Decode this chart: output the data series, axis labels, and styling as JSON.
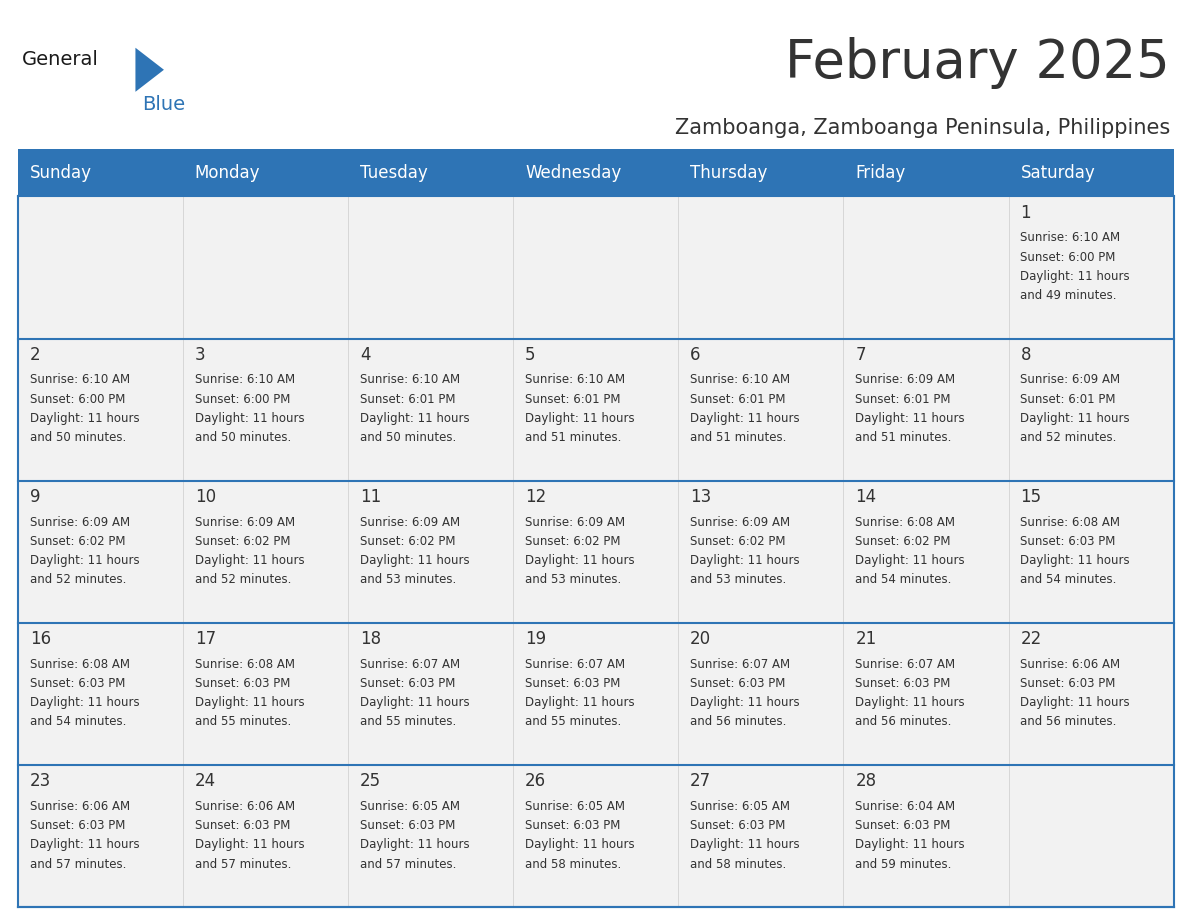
{
  "title": "February 2025",
  "subtitle": "Zamboanga, Zamboanga Peninsula, Philippines",
  "header_bg": "#2E74B5",
  "header_text_color": "#FFFFFF",
  "cell_bg": "#F2F2F2",
  "border_color": "#2E74B5",
  "cell_border_color": "#AAAAAA",
  "text_color": "#333333",
  "days_of_week": [
    "Sunday",
    "Monday",
    "Tuesday",
    "Wednesday",
    "Thursday",
    "Friday",
    "Saturday"
  ],
  "calendar_data": [
    [
      null,
      null,
      null,
      null,
      null,
      null,
      {
        "day": 1,
        "sunrise": "6:10 AM",
        "sunset": "6:00 PM",
        "daylight": "11 hours and 49 minutes."
      }
    ],
    [
      {
        "day": 2,
        "sunrise": "6:10 AM",
        "sunset": "6:00 PM",
        "daylight": "11 hours and 50 minutes."
      },
      {
        "day": 3,
        "sunrise": "6:10 AM",
        "sunset": "6:00 PM",
        "daylight": "11 hours and 50 minutes."
      },
      {
        "day": 4,
        "sunrise": "6:10 AM",
        "sunset": "6:01 PM",
        "daylight": "11 hours and 50 minutes."
      },
      {
        "day": 5,
        "sunrise": "6:10 AM",
        "sunset": "6:01 PM",
        "daylight": "11 hours and 51 minutes."
      },
      {
        "day": 6,
        "sunrise": "6:10 AM",
        "sunset": "6:01 PM",
        "daylight": "11 hours and 51 minutes."
      },
      {
        "day": 7,
        "sunrise": "6:09 AM",
        "sunset": "6:01 PM",
        "daylight": "11 hours and 51 minutes."
      },
      {
        "day": 8,
        "sunrise": "6:09 AM",
        "sunset": "6:01 PM",
        "daylight": "11 hours and 52 minutes."
      }
    ],
    [
      {
        "day": 9,
        "sunrise": "6:09 AM",
        "sunset": "6:02 PM",
        "daylight": "11 hours and 52 minutes."
      },
      {
        "day": 10,
        "sunrise": "6:09 AM",
        "sunset": "6:02 PM",
        "daylight": "11 hours and 52 minutes."
      },
      {
        "day": 11,
        "sunrise": "6:09 AM",
        "sunset": "6:02 PM",
        "daylight": "11 hours and 53 minutes."
      },
      {
        "day": 12,
        "sunrise": "6:09 AM",
        "sunset": "6:02 PM",
        "daylight": "11 hours and 53 minutes."
      },
      {
        "day": 13,
        "sunrise": "6:09 AM",
        "sunset": "6:02 PM",
        "daylight": "11 hours and 53 minutes."
      },
      {
        "day": 14,
        "sunrise": "6:08 AM",
        "sunset": "6:02 PM",
        "daylight": "11 hours and 54 minutes."
      },
      {
        "day": 15,
        "sunrise": "6:08 AM",
        "sunset": "6:03 PM",
        "daylight": "11 hours and 54 minutes."
      }
    ],
    [
      {
        "day": 16,
        "sunrise": "6:08 AM",
        "sunset": "6:03 PM",
        "daylight": "11 hours and 54 minutes."
      },
      {
        "day": 17,
        "sunrise": "6:08 AM",
        "sunset": "6:03 PM",
        "daylight": "11 hours and 55 minutes."
      },
      {
        "day": 18,
        "sunrise": "6:07 AM",
        "sunset": "6:03 PM",
        "daylight": "11 hours and 55 minutes."
      },
      {
        "day": 19,
        "sunrise": "6:07 AM",
        "sunset": "6:03 PM",
        "daylight": "11 hours and 55 minutes."
      },
      {
        "day": 20,
        "sunrise": "6:07 AM",
        "sunset": "6:03 PM",
        "daylight": "11 hours and 56 minutes."
      },
      {
        "day": 21,
        "sunrise": "6:07 AM",
        "sunset": "6:03 PM",
        "daylight": "11 hours and 56 minutes."
      },
      {
        "day": 22,
        "sunrise": "6:06 AM",
        "sunset": "6:03 PM",
        "daylight": "11 hours and 56 minutes."
      }
    ],
    [
      {
        "day": 23,
        "sunrise": "6:06 AM",
        "sunset": "6:03 PM",
        "daylight": "11 hours and 57 minutes."
      },
      {
        "day": 24,
        "sunrise": "6:06 AM",
        "sunset": "6:03 PM",
        "daylight": "11 hours and 57 minutes."
      },
      {
        "day": 25,
        "sunrise": "6:05 AM",
        "sunset": "6:03 PM",
        "daylight": "11 hours and 57 minutes."
      },
      {
        "day": 26,
        "sunrise": "6:05 AM",
        "sunset": "6:03 PM",
        "daylight": "11 hours and 58 minutes."
      },
      {
        "day": 27,
        "sunrise": "6:05 AM",
        "sunset": "6:03 PM",
        "daylight": "11 hours and 58 minutes."
      },
      {
        "day": 28,
        "sunrise": "6:04 AM",
        "sunset": "6:03 PM",
        "daylight": "11 hours and 59 minutes."
      },
      null
    ]
  ],
  "logo_general_color": "#1a1a1a",
  "logo_blue_color": "#2E74B5",
  "title_fontsize": 38,
  "subtitle_fontsize": 15,
  "day_header_fontsize": 12,
  "day_number_fontsize": 12,
  "cell_text_fontsize": 8.5
}
